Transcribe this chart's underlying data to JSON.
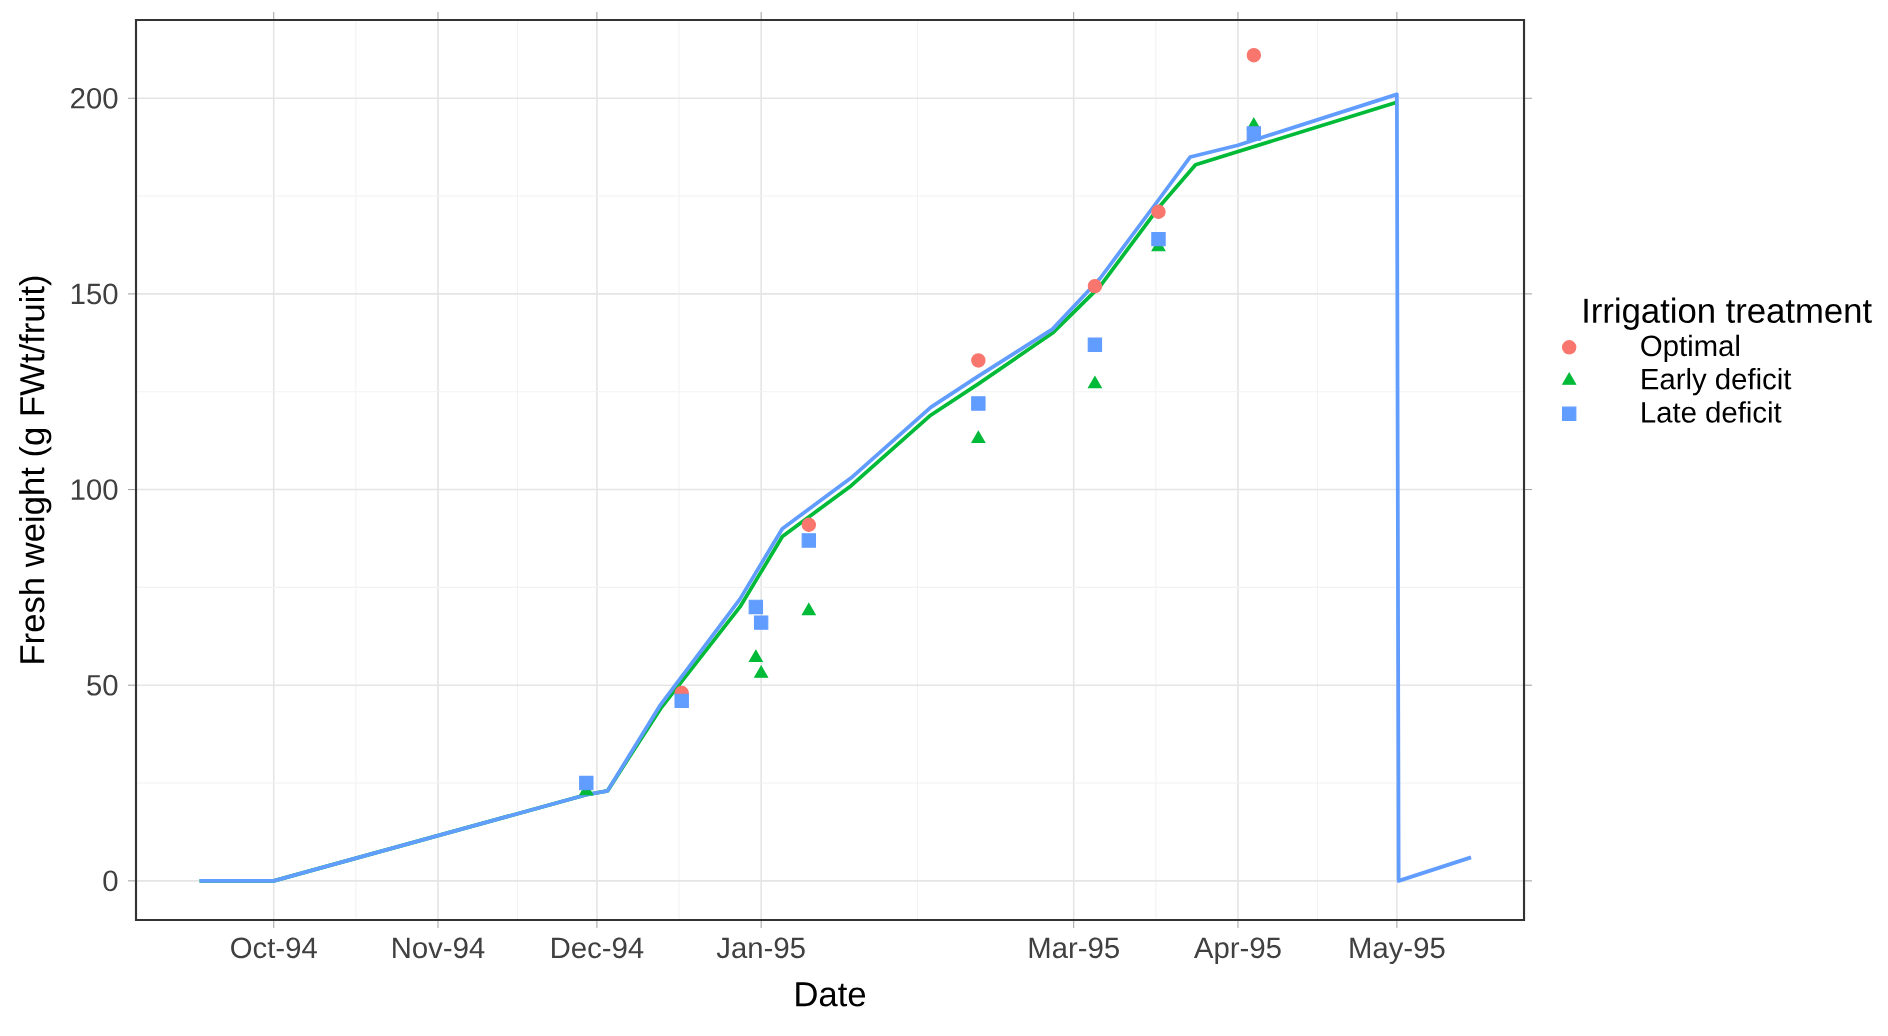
{
  "chart_data": {
    "type": "scatter",
    "xlabel": "Date",
    "ylabel": "Fresh weight (g FWt/fruit)",
    "legend_title": "Irrigation treatment",
    "legend": "right",
    "grid": true,
    "xlim": [
      "1994-09-05",
      "1995-05-25"
    ],
    "ylim": [
      -10,
      220
    ],
    "xticks": [
      {
        "value": "1994-10-01",
        "label": "Oct-94"
      },
      {
        "value": "1994-11-01",
        "label": "Nov-94"
      },
      {
        "value": "1994-12-01",
        "label": "Dec-94"
      },
      {
        "value": "1995-01-01",
        "label": "Jan-95"
      },
      {
        "value": "1995-03-01",
        "label": "Mar-95"
      },
      {
        "value": "1995-04-01",
        "label": "Apr-95"
      },
      {
        "value": "1995-05-01",
        "label": "May-95"
      }
    ],
    "yticks": [
      0,
      50,
      100,
      150,
      200
    ],
    "series": [
      {
        "type": "line",
        "color": "#00ba38",
        "x": [
          "1994-09-17",
          "1994-10-01",
          "1994-11-29",
          "1994-12-03",
          "1994-12-13",
          "1994-12-28",
          "1995-01-05",
          "1995-01-18",
          "1995-02-02",
          "1995-02-11",
          "1995-02-25",
          "1995-03-06",
          "1995-03-17",
          "1995-03-24",
          "1995-05-01"
        ],
        "values": [
          0,
          0,
          22,
          23,
          44,
          70,
          88,
          101,
          119,
          127,
          140,
          152,
          172,
          183,
          199
        ]
      },
      {
        "type": "line",
        "color": "#619cff",
        "x": [
          "1994-09-17",
          "1994-10-01",
          "1994-11-29",
          "1994-12-03",
          "1994-12-13",
          "1994-12-28",
          "1995-01-05",
          "1995-01-18",
          "1995-02-02",
          "1995-02-11",
          "1995-02-25",
          "1995-03-06",
          "1995-03-17",
          "1995-03-23",
          "1995-04-01",
          "1995-05-01",
          "1995-05-01T08:00",
          "1995-05-15"
        ],
        "values": [
          0,
          0,
          22,
          23,
          45,
          72,
          90,
          103,
          121,
          129,
          141,
          154,
          174,
          185,
          188,
          201,
          0,
          6
        ]
      },
      {
        "name": "Optimal",
        "color": "#f8766d",
        "marker": "circle",
        "x": [
          "1994-12-17",
          "1995-01-10",
          "1995-02-11",
          "1995-03-05",
          "1995-03-17",
          "1995-04-04"
        ],
        "values": [
          48,
          91,
          133,
          152,
          171,
          211
        ]
      },
      {
        "name": "Early deficit",
        "color": "#00ba38",
        "marker": "triangle",
        "x": [
          "1994-11-29",
          "1994-12-31",
          "1995-01-01",
          "1995-01-10",
          "1995-02-11",
          "1995-03-05",
          "1995-03-17",
          "1995-04-04"
        ],
        "values": [
          23,
          57,
          53,
          69,
          113,
          127,
          162,
          193
        ]
      },
      {
        "name": "Late deficit",
        "color": "#619cff",
        "marker": "square",
        "x": [
          "1994-11-29",
          "1994-12-17",
          "1994-12-31",
          "1995-01-01",
          "1995-01-10",
          "1995-02-11",
          "1995-03-05",
          "1995-03-17",
          "1995-04-04"
        ],
        "values": [
          25,
          46,
          70,
          66,
          87,
          122,
          137,
          164,
          191
        ]
      }
    ]
  }
}
